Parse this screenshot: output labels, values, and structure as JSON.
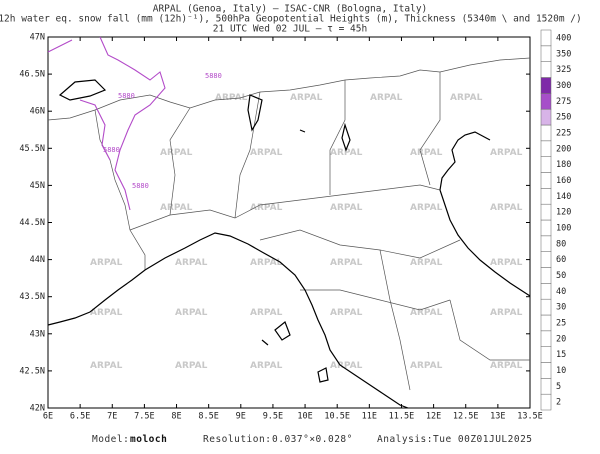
{
  "header": {
    "line1": "ARPAL (Genoa, Italy)  –  ISAC-CNR (Bologna, Italy)",
    "line2": "12h water eq. snow fall (mm (12h)⁻¹), 500hPa Geopotential Heights (m), Thickness (5340m \\ and 1520m /)",
    "line3": "21 UTC Wed 02 JUL  –  τ = 45h"
  },
  "map": {
    "lat_labels": [
      "47N",
      "46.5N",
      "46N",
      "45.5N",
      "45N",
      "44.5N",
      "44N",
      "43.5N",
      "43N",
      "42.5N",
      "42N"
    ],
    "lon_labels": [
      "6E",
      "6.5E",
      "7E",
      "7.5E",
      "8E",
      "8.5E",
      "9E",
      "9.5E",
      "10E",
      "10.5E",
      "11E",
      "11.5E",
      "12E",
      "12.5E",
      "13E",
      "13.5E"
    ],
    "contour_label": "5880",
    "watermark": "ARPAL"
  },
  "colorbar": {
    "levels": [
      2,
      5,
      10,
      15,
      20,
      25,
      30,
      40,
      50,
      60,
      80,
      100,
      120,
      140,
      160,
      180,
      200,
      225,
      250,
      275,
      300,
      325,
      350,
      400
    ]
  },
  "footer": {
    "model_label": "Model:",
    "model": "moloch",
    "resolution_label": "Resolution:",
    "resolution": "0.037°×0.028°",
    "analysis_label": "Analysis:",
    "analysis": "Tue 00Z01JUL2025"
  }
}
